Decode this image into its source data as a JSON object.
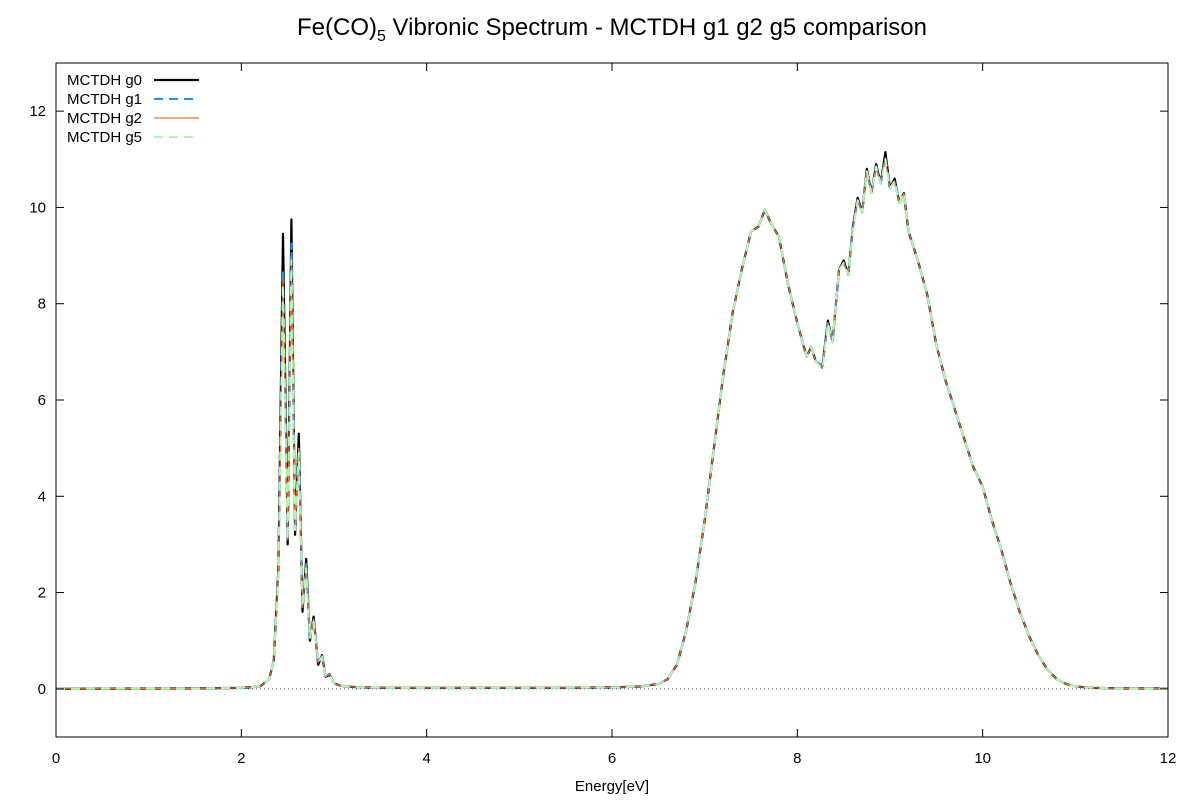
{
  "chart_data": {
    "type": "line",
    "title": {
      "prefix": "Fe(CO)",
      "subscript": "5",
      "suffix": " Vibronic Spectrum - MCTDH g1 g2 g5 comparison"
    },
    "xlabel": "Energy[eV]",
    "ylabel": "",
    "xlim": [
      0,
      12
    ],
    "ylim": [
      -1,
      13
    ],
    "x_ticks": [
      "0",
      "2",
      "4",
      "6",
      "8",
      "10",
      "12"
    ],
    "y_ticks": [
      "0",
      "2",
      "4",
      "6",
      "8",
      "10",
      "12"
    ],
    "grid": false,
    "legend_position": "top-left",
    "zero_line": true,
    "series": [
      {
        "name": "MCTDH g0",
        "color": "#000000",
        "style": "solid",
        "x": [
          0,
          1.5,
          2.0,
          2.2,
          2.3,
          2.35,
          2.4,
          2.45,
          2.5,
          2.54,
          2.58,
          2.62,
          2.66,
          2.7,
          2.74,
          2.78,
          2.83,
          2.87,
          2.91,
          2.95,
          3.0,
          3.05,
          3.1,
          3.3,
          3.6,
          4.5,
          5.5,
          6.0,
          6.3,
          6.5,
          6.6,
          6.7,
          6.8,
          6.9,
          7.0,
          7.1,
          7.2,
          7.3,
          7.4,
          7.5,
          7.58,
          7.65,
          7.72,
          7.8,
          7.9,
          8.0,
          8.1,
          8.15,
          8.2,
          8.27,
          8.33,
          8.38,
          8.45,
          8.5,
          8.55,
          8.6,
          8.65,
          8.7,
          8.75,
          8.8,
          8.85,
          8.9,
          8.95,
          9.0,
          9.05,
          9.1,
          9.15,
          9.2,
          9.3,
          9.4,
          9.5,
          9.6,
          9.7,
          9.8,
          9.9,
          10.0,
          10.1,
          10.2,
          10.3,
          10.4,
          10.5,
          10.6,
          10.7,
          10.8,
          10.9,
          11.0,
          11.2,
          11.5,
          12.0
        ],
        "values": [
          0,
          0.01,
          0.02,
          0.05,
          0.2,
          0.6,
          2.5,
          9.45,
          3.0,
          9.75,
          3.2,
          5.3,
          1.6,
          2.7,
          1.0,
          1.5,
          0.5,
          0.7,
          0.25,
          0.3,
          0.12,
          0.08,
          0.05,
          0.03,
          0.02,
          0.02,
          0.02,
          0.03,
          0.05,
          0.1,
          0.2,
          0.5,
          1.2,
          2.2,
          3.5,
          5.0,
          6.5,
          7.8,
          8.7,
          9.5,
          9.6,
          9.95,
          9.65,
          9.4,
          8.4,
          7.6,
          6.9,
          7.1,
          6.8,
          6.7,
          7.65,
          7.2,
          8.7,
          8.9,
          8.6,
          9.6,
          10.2,
          9.9,
          10.8,
          10.3,
          10.9,
          10.5,
          11.15,
          10.4,
          10.6,
          10.1,
          10.3,
          9.5,
          8.9,
          8.2,
          7.15,
          6.4,
          5.8,
          5.2,
          4.6,
          4.2,
          3.5,
          2.9,
          2.2,
          1.6,
          1.1,
          0.7,
          0.4,
          0.2,
          0.1,
          0.05,
          0.02,
          0.01,
          0.01
        ]
      },
      {
        "name": "MCTDH g1",
        "color": "#1e90ff",
        "style": "dashed",
        "x": [
          0,
          1.5,
          2.0,
          2.2,
          2.3,
          2.35,
          2.4,
          2.45,
          2.5,
          2.54,
          2.58,
          2.62,
          2.66,
          2.7,
          2.74,
          2.78,
          2.83,
          2.87,
          2.91,
          2.95,
          3.0,
          3.05,
          3.1,
          3.3,
          3.6,
          4.5,
          5.5,
          6.0,
          6.3,
          6.5,
          6.6,
          6.7,
          6.8,
          6.9,
          7.0,
          7.1,
          7.2,
          7.3,
          7.4,
          7.5,
          7.58,
          7.65,
          7.72,
          7.8,
          7.9,
          8.0,
          8.1,
          8.15,
          8.2,
          8.27,
          8.33,
          8.38,
          8.45,
          8.5,
          8.55,
          8.6,
          8.65,
          8.7,
          8.75,
          8.8,
          8.85,
          8.9,
          8.95,
          9.0,
          9.05,
          9.1,
          9.15,
          9.2,
          9.3,
          9.4,
          9.5,
          9.6,
          9.7,
          9.8,
          9.9,
          10.0,
          10.1,
          10.2,
          10.3,
          10.4,
          10.5,
          10.6,
          10.7,
          10.8,
          10.9,
          11.0,
          11.2,
          11.5,
          12.0
        ],
        "values": [
          0,
          0.01,
          0.02,
          0.05,
          0.2,
          0.6,
          2.4,
          8.7,
          3.1,
          9.25,
          3.3,
          5.0,
          1.7,
          2.6,
          1.05,
          1.45,
          0.55,
          0.68,
          0.26,
          0.3,
          0.12,
          0.08,
          0.05,
          0.03,
          0.02,
          0.02,
          0.02,
          0.03,
          0.05,
          0.1,
          0.2,
          0.5,
          1.2,
          2.2,
          3.5,
          5.0,
          6.5,
          7.8,
          8.7,
          9.5,
          9.6,
          9.95,
          9.65,
          9.4,
          8.4,
          7.6,
          6.9,
          7.1,
          6.8,
          6.7,
          7.6,
          7.2,
          8.7,
          8.85,
          8.6,
          9.55,
          10.15,
          9.9,
          10.75,
          10.3,
          10.85,
          10.5,
          11.05,
          10.4,
          10.55,
          10.1,
          10.3,
          9.5,
          8.9,
          8.2,
          7.15,
          6.4,
          5.8,
          5.2,
          4.6,
          4.2,
          3.5,
          2.9,
          2.2,
          1.6,
          1.1,
          0.7,
          0.4,
          0.2,
          0.1,
          0.05,
          0.02,
          0.01,
          0.01
        ]
      },
      {
        "name": "MCTDH g2",
        "color": "#e07b39",
        "style": "solid-thin",
        "x": [
          0,
          1.5,
          2.0,
          2.2,
          2.3,
          2.35,
          2.4,
          2.45,
          2.5,
          2.54,
          2.58,
          2.62,
          2.66,
          2.7,
          2.74,
          2.78,
          2.83,
          2.87,
          2.91,
          2.95,
          3.0,
          3.05,
          3.1,
          3.3,
          3.6,
          4.5,
          5.5,
          6.0,
          6.3,
          6.5,
          6.6,
          6.7,
          6.8,
          6.9,
          7.0,
          7.1,
          7.2,
          7.3,
          7.4,
          7.5,
          7.58,
          7.65,
          7.72,
          7.8,
          7.9,
          8.0,
          8.1,
          8.15,
          8.2,
          8.27,
          8.33,
          8.38,
          8.45,
          8.5,
          8.55,
          8.6,
          8.65,
          8.7,
          8.75,
          8.8,
          8.85,
          8.9,
          8.95,
          9.0,
          9.05,
          9.1,
          9.15,
          9.2,
          9.3,
          9.4,
          9.5,
          9.6,
          9.7,
          9.8,
          9.9,
          10.0,
          10.1,
          10.2,
          10.3,
          10.4,
          10.5,
          10.6,
          10.7,
          10.8,
          10.9,
          11.0,
          11.2,
          11.5,
          12.0
        ],
        "values": [
          0,
          0.01,
          0.02,
          0.05,
          0.2,
          0.6,
          2.4,
          8.5,
          3.1,
          9.0,
          3.3,
          5.0,
          1.7,
          2.55,
          1.05,
          1.45,
          0.55,
          0.68,
          0.26,
          0.3,
          0.12,
          0.08,
          0.05,
          0.03,
          0.02,
          0.02,
          0.02,
          0.03,
          0.05,
          0.1,
          0.2,
          0.5,
          1.2,
          2.2,
          3.5,
          5.0,
          6.5,
          7.8,
          8.7,
          9.5,
          9.6,
          9.95,
          9.65,
          9.4,
          8.4,
          7.6,
          6.9,
          7.1,
          6.8,
          6.65,
          7.6,
          7.2,
          8.7,
          8.85,
          8.6,
          9.55,
          10.15,
          9.9,
          10.75,
          10.3,
          10.85,
          10.5,
          11.0,
          10.4,
          10.55,
          10.1,
          10.3,
          9.5,
          8.9,
          8.2,
          7.15,
          6.4,
          5.8,
          5.2,
          4.6,
          4.2,
          3.5,
          2.9,
          2.2,
          1.6,
          1.1,
          0.7,
          0.4,
          0.2,
          0.1,
          0.05,
          0.02,
          0.01,
          0.01
        ]
      },
      {
        "name": "MCTDH g5",
        "color": "#b3f5b3",
        "style": "dashed",
        "x": [
          0,
          1.5,
          2.0,
          2.2,
          2.3,
          2.35,
          2.4,
          2.45,
          2.5,
          2.54,
          2.58,
          2.62,
          2.66,
          2.7,
          2.74,
          2.78,
          2.83,
          2.87,
          2.91,
          2.95,
          3.0,
          3.05,
          3.1,
          3.3,
          3.6,
          4.5,
          5.5,
          6.0,
          6.3,
          6.5,
          6.6,
          6.7,
          6.8,
          6.9,
          7.0,
          7.1,
          7.2,
          7.3,
          7.4,
          7.5,
          7.58,
          7.65,
          7.72,
          7.8,
          7.9,
          8.0,
          8.1,
          8.15,
          8.2,
          8.27,
          8.33,
          8.38,
          8.45,
          8.5,
          8.55,
          8.6,
          8.65,
          8.7,
          8.75,
          8.8,
          8.85,
          8.9,
          8.95,
          9.0,
          9.05,
          9.1,
          9.15,
          9.2,
          9.3,
          9.4,
          9.5,
          9.6,
          9.7,
          9.8,
          9.9,
          10.0,
          10.1,
          10.2,
          10.3,
          10.4,
          10.5,
          10.6,
          10.7,
          10.8,
          10.9,
          11.0,
          11.2,
          11.5,
          12.0
        ],
        "values": [
          0,
          0.01,
          0.02,
          0.05,
          0.2,
          0.6,
          2.4,
          8.4,
          3.1,
          8.9,
          3.3,
          4.9,
          1.7,
          2.5,
          1.05,
          1.4,
          0.55,
          0.66,
          0.26,
          0.29,
          0.12,
          0.08,
          0.05,
          0.03,
          0.02,
          0.02,
          0.02,
          0.03,
          0.05,
          0.1,
          0.2,
          0.5,
          1.2,
          2.2,
          3.5,
          5.0,
          6.5,
          7.8,
          8.7,
          9.5,
          9.6,
          9.95,
          9.65,
          9.4,
          8.4,
          7.6,
          6.9,
          7.1,
          6.8,
          6.65,
          7.6,
          7.2,
          8.7,
          8.85,
          8.6,
          9.55,
          10.15,
          9.9,
          10.75,
          10.3,
          10.85,
          10.5,
          11.0,
          10.4,
          10.55,
          10.1,
          10.3,
          9.5,
          8.9,
          8.2,
          7.15,
          6.4,
          5.8,
          5.2,
          4.6,
          4.2,
          3.5,
          2.9,
          2.2,
          1.6,
          1.1,
          0.7,
          0.4,
          0.2,
          0.1,
          0.05,
          0.02,
          0.01,
          0.01
        ]
      }
    ]
  }
}
